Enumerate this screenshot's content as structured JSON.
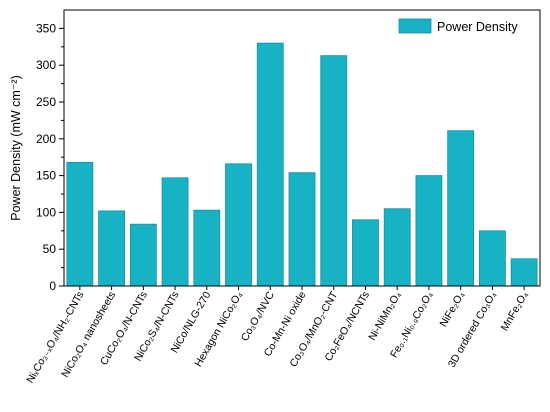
{
  "chart_data": {
    "type": "bar",
    "ylabel": "Power Density (mW cm⁻²)",
    "xlabel": "",
    "ylim": [
      0,
      375
    ],
    "yticks": [
      0,
      50,
      100,
      150,
      200,
      250,
      300,
      350
    ],
    "legend": {
      "position": "top-right"
    },
    "grid": false,
    "categories": [
      "NiₓCo₃₋ₓO₄/NH₂-CNTs",
      "NiCo₂O₄ nanosheets",
      "CuCo₂O₄/N-CNTs",
      "NiCo₂S₄/N-CNTs",
      "NiCo/NLG-270",
      "Hexagon NiCo₂O₄",
      "Co₃O₄/NVC",
      "Co-Mn-Ni oxide",
      "Co₃O₄/MnO₂-CNT",
      "Co₂FeO₄/NCNTs",
      "Ni-NiMn₂O₄",
      "Fe₀.₁Ni₀.₉Co₂O₄",
      "NiFe₂O₄",
      "3D ordered Co₃O₄",
      "MnFe₂O₄"
    ],
    "series": [
      {
        "name": "Power Density",
        "color": "#17b3c5",
        "values": [
          168,
          102,
          84,
          147,
          103,
          166,
          330,
          154,
          313,
          90,
          105,
          150,
          211,
          75,
          37
        ]
      }
    ]
  }
}
